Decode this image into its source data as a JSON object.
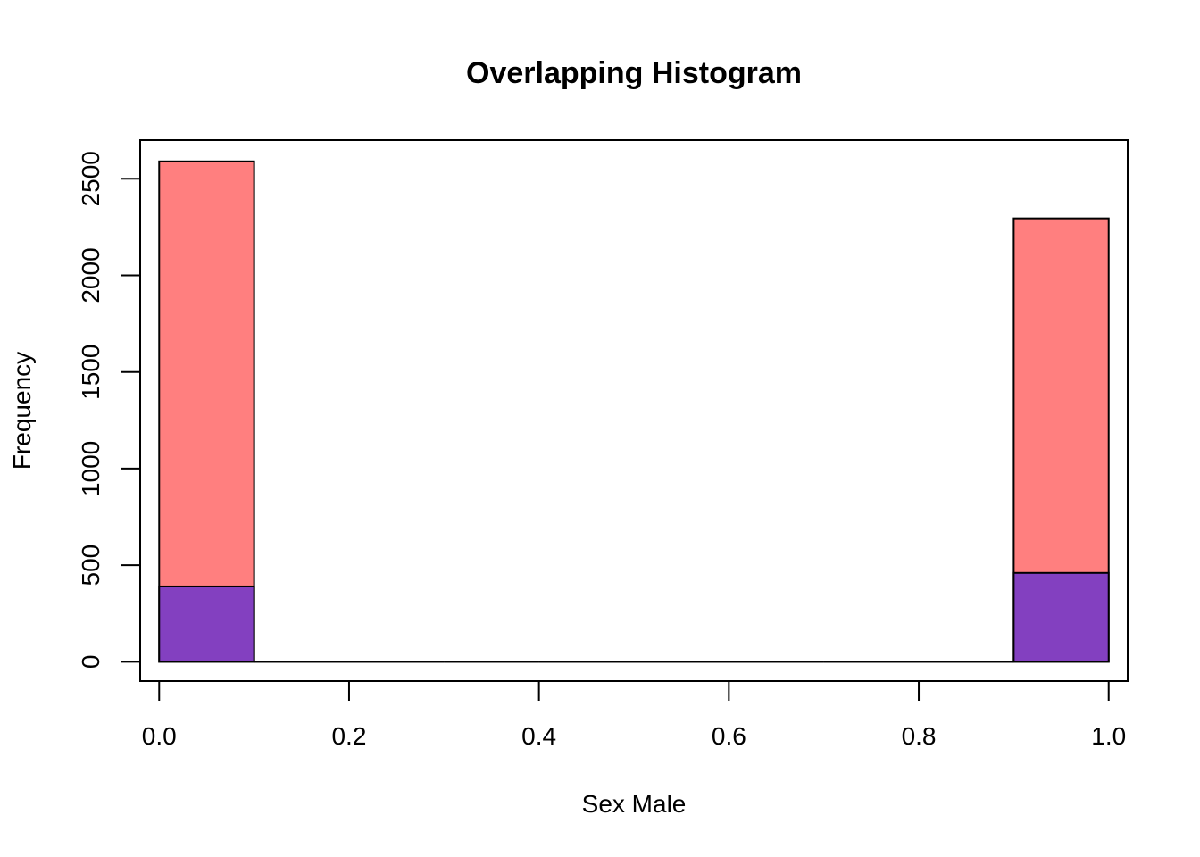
{
  "chart_data": {
    "type": "bar",
    "title": "Overlapping Histogram",
    "xlabel": "Sex Male",
    "ylabel": "Frequency",
    "xlim": [
      -0.02,
      1.02
    ],
    "ylim": [
      -100,
      2700
    ],
    "x_ticks": [
      0.0,
      0.2,
      0.4,
      0.6,
      0.8,
      1.0
    ],
    "x_tick_labels": [
      "0.0",
      "0.2",
      "0.4",
      "0.6",
      "0.8",
      "1.0"
    ],
    "y_ticks": [
      0,
      500,
      1000,
      1500,
      2000,
      2500
    ],
    "y_tick_labels": [
      "0",
      "500",
      "1000",
      "1500",
      "2000",
      "2500"
    ],
    "bin_edges": [
      0.0,
      0.1,
      0.2,
      0.3,
      0.4,
      0.5,
      0.6,
      0.7,
      0.8,
      0.9,
      1.0
    ],
    "grid": false,
    "legend": "none",
    "series": [
      {
        "color": "#FF7F7F",
        "values": [
          2590,
          0,
          0,
          0,
          0,
          0,
          0,
          0,
          0,
          2295
        ]
      },
      {
        "color": "#8340C0",
        "values": [
          390,
          0,
          0,
          0,
          0,
          0,
          0,
          0,
          0,
          460
        ]
      }
    ]
  }
}
